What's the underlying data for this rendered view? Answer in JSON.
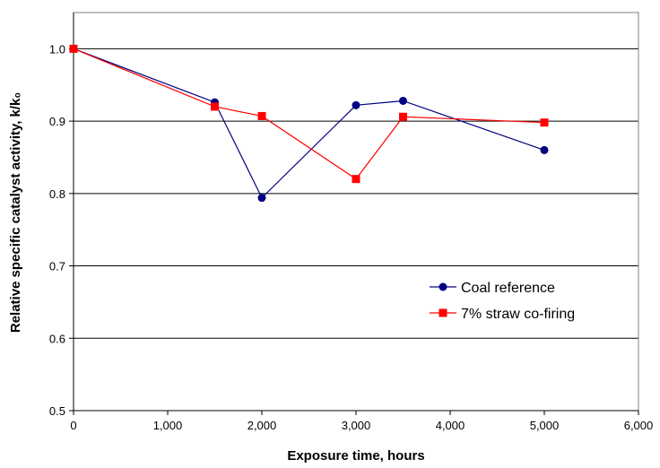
{
  "chart_data": {
    "type": "line",
    "title": "",
    "xlabel": "Exposure time, hours",
    "ylabel": "Relative specific catalyst activity, k/k₀",
    "xlim": [
      0,
      6000
    ],
    "ylim": [
      0.5,
      1.05
    ],
    "x_ticks": [
      0,
      1000,
      2000,
      3000,
      4000,
      5000,
      6000
    ],
    "x_tick_labels": [
      "0",
      "1,000",
      "2,000",
      "3,000",
      "4,000",
      "5,000",
      "6,000"
    ],
    "y_ticks": [
      0.5,
      0.6,
      0.7,
      0.8,
      0.9,
      1.0
    ],
    "y_tick_labels": [
      "0.5",
      "0.6",
      "0.7",
      "0.8",
      "0.9",
      "1.0"
    ],
    "grid": "horizontal major gridlines",
    "legend_position": "right, lower-middle",
    "series": [
      {
        "name": "Coal reference",
        "color": "#000080",
        "marker": "circle",
        "x": [
          0,
          1500,
          2000,
          3000,
          3500,
          5000
        ],
        "y": [
          1.0,
          0.926,
          0.794,
          0.922,
          0.928,
          0.86
        ]
      },
      {
        "name": "7% straw co-firing",
        "color": "#ff0000",
        "marker": "square",
        "x": [
          0,
          1500,
          2000,
          3000,
          3500,
          5000
        ],
        "y": [
          1.0,
          0.92,
          0.907,
          0.82,
          0.906,
          0.898
        ]
      }
    ]
  }
}
